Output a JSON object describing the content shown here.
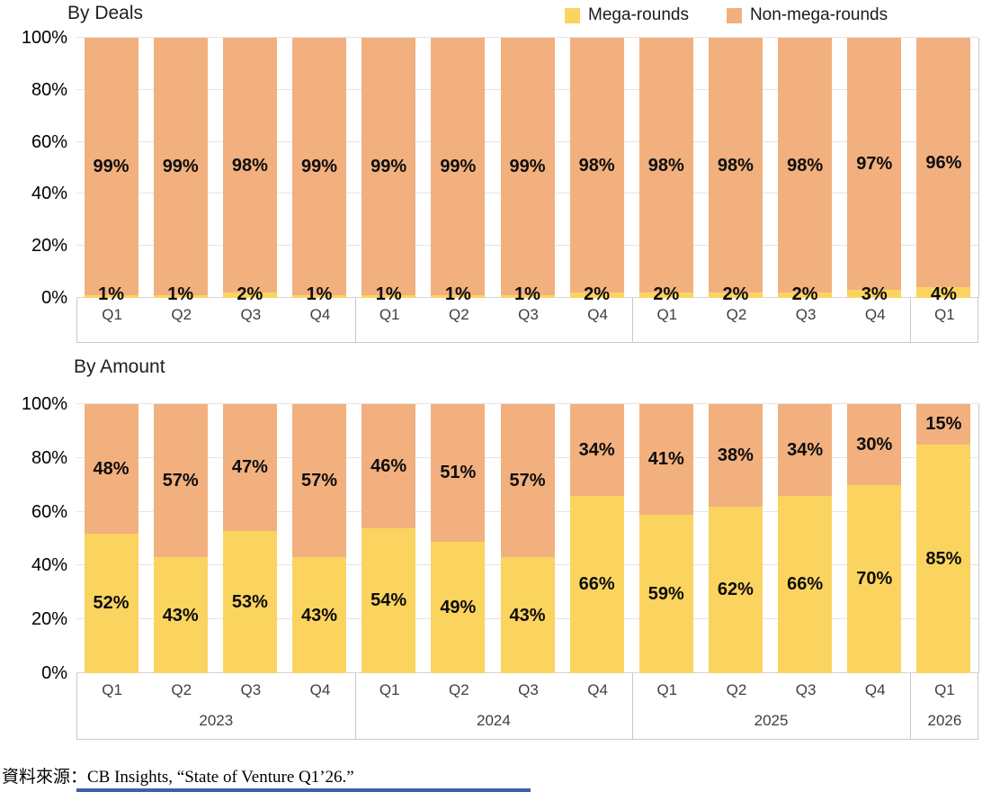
{
  "page": {
    "source_note": "資料來源：CB Insights, “State of Venture Q1’26.”"
  },
  "legend": {
    "items": [
      {
        "name": "mega-rounds",
        "label": "Mega-rounds",
        "color": "#FBD45F"
      },
      {
        "name": "non-mega-rounds",
        "label": "Non-mega-rounds",
        "color": "#F2B07E"
      }
    ]
  },
  "colors": {
    "mega": "#FBD45F",
    "non_mega": "#F2B07E",
    "gridline": "#E4E4E4",
    "axis_line": "#D2D2D2",
    "strip_border": "#C9C9C9",
    "bottom_bar_blue": "#3D5FAD",
    "label_text": "#0d0d0d"
  },
  "chart_data": [
    {
      "type": "bar",
      "stacked": true,
      "title": "By Deals",
      "categories": [
        "Q1",
        "Q2",
        "Q3",
        "Q4",
        "Q1",
        "Q2",
        "Q3",
        "Q4",
        "Q1",
        "Q2",
        "Q3",
        "Q4",
        "Q1"
      ],
      "series": [
        {
          "name": "Mega-rounds",
          "color": "#FBD45F",
          "values": [
            1,
            1,
            2,
            1,
            1,
            1,
            1,
            2,
            2,
            2,
            2,
            3,
            4
          ]
        },
        {
          "name": "Non-mega-rounds",
          "color": "#F2B07E",
          "values": [
            99,
            99,
            98,
            99,
            99,
            99,
            99,
            98,
            98,
            98,
            98,
            97,
            96
          ]
        }
      ],
      "ylim": [
        0,
        100
      ],
      "yticks": [
        "0%",
        "20%",
        "40%",
        "60%",
        "80%",
        "100%"
      ],
      "grid": true,
      "legend_position": "top-right",
      "year_groups": [
        {
          "label": "",
          "span": 4
        },
        {
          "label": "",
          "span": 4
        },
        {
          "label": "",
          "span": 4
        },
        {
          "label": "",
          "span": 1
        }
      ]
    },
    {
      "type": "bar",
      "stacked": true,
      "title": "By Amount",
      "categories": [
        "Q1",
        "Q2",
        "Q3",
        "Q4",
        "Q1",
        "Q2",
        "Q3",
        "Q4",
        "Q1",
        "Q2",
        "Q3",
        "Q4",
        "Q1"
      ],
      "series": [
        {
          "name": "Mega-rounds",
          "color": "#FBD45F",
          "values": [
            52,
            43,
            53,
            43,
            54,
            49,
            43,
            66,
            59,
            62,
            66,
            70,
            85
          ]
        },
        {
          "name": "Non-mega-rounds",
          "color": "#F2B07E",
          "values": [
            48,
            57,
            47,
            57,
            46,
            51,
            57,
            34,
            41,
            38,
            34,
            30,
            15
          ]
        }
      ],
      "ylim": [
        0,
        100
      ],
      "yticks": [
        "0%",
        "20%",
        "40%",
        "60%",
        "80%",
        "100%"
      ],
      "grid": true,
      "year_groups": [
        {
          "label": "2023",
          "span": 4
        },
        {
          "label": "2024",
          "span": 4
        },
        {
          "label": "2025",
          "span": 4
        },
        {
          "label": "2026",
          "span": 1
        }
      ]
    }
  ]
}
